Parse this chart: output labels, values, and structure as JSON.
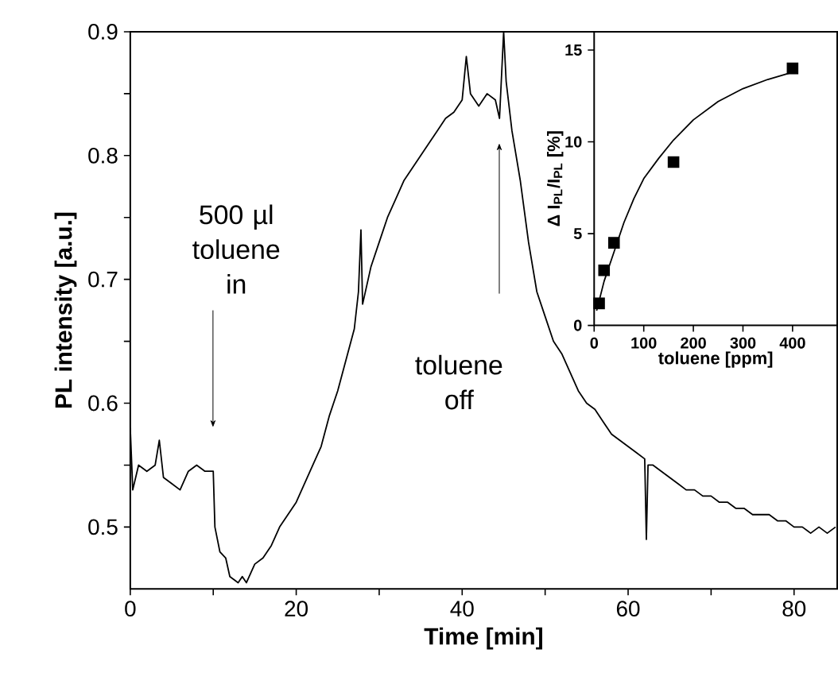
{
  "chart_data": [
    {
      "type": "line",
      "xlabel": "Time [min]",
      "ylabel": "PL intensity [a.u.]",
      "color": "#000000",
      "xlim": [
        0,
        85.2
      ],
      "ylim": [
        0.45,
        0.9
      ],
      "xticks": [
        0,
        {
          "value": 10,
          "label": null
        },
        20,
        {
          "value": 30,
          "label": null
        },
        40,
        {
          "value": 50,
          "label": null
        },
        60,
        {
          "value": 70,
          "label": null
        },
        80
      ],
      "yticks": [
        0.5,
        {
          "value": 0.55,
          "label": null
        },
        0.6,
        {
          "value": 0.65,
          "label": null
        },
        0.7,
        {
          "value": 0.75,
          "label": null
        },
        0.8,
        {
          "value": 0.85,
          "label": null
        },
        0.9
      ],
      "x": [
        0,
        0.3,
        1,
        2,
        3,
        3.5,
        4,
        5,
        6,
        7,
        8,
        9,
        10,
        10.2,
        10.8,
        11.5,
        12,
        13,
        13.5,
        14,
        15,
        16,
        17,
        18,
        19,
        20,
        21,
        22,
        23,
        24,
        25,
        26,
        27,
        27.5,
        27.8,
        28,
        29,
        30,
        31,
        32,
        33,
        34,
        35,
        36,
        37,
        38,
        39,
        40,
        40.5,
        41,
        42,
        43,
        44,
        44.5,
        45,
        45.3,
        46,
        47,
        48,
        49,
        50,
        51,
        52,
        53,
        54,
        55,
        56,
        57,
        58,
        59,
        60,
        61,
        62,
        62.2,
        62.4,
        63,
        64,
        65,
        66,
        67,
        68,
        69,
        70,
        71,
        72,
        73,
        74,
        75,
        76,
        77,
        78,
        79,
        80,
        81,
        82,
        83,
        84,
        85
      ],
      "values": [
        0.58,
        0.53,
        0.55,
        0.545,
        0.55,
        0.57,
        0.54,
        0.535,
        0.53,
        0.545,
        0.55,
        0.545,
        0.545,
        0.5,
        0.48,
        0.475,
        0.46,
        0.455,
        0.46,
        0.455,
        0.47,
        0.475,
        0.485,
        0.5,
        0.51,
        0.52,
        0.535,
        0.55,
        0.565,
        0.59,
        0.61,
        0.635,
        0.66,
        0.69,
        0.74,
        0.68,
        0.71,
        0.73,
        0.75,
        0.765,
        0.78,
        0.79,
        0.8,
        0.81,
        0.82,
        0.83,
        0.835,
        0.845,
        0.88,
        0.85,
        0.84,
        0.85,
        0.845,
        0.83,
        0.9,
        0.86,
        0.82,
        0.78,
        0.73,
        0.69,
        0.67,
        0.65,
        0.64,
        0.625,
        0.61,
        0.6,
        0.595,
        0.585,
        0.575,
        0.57,
        0.565,
        0.56,
        0.555,
        0.49,
        0.55,
        0.55,
        0.545,
        0.54,
        0.535,
        0.53,
        0.53,
        0.525,
        0.525,
        0.52,
        0.52,
        0.515,
        0.515,
        0.51,
        0.51,
        0.51,
        0.505,
        0.505,
        0.5,
        0.5,
        0.495,
        0.5,
        0.495,
        0.5
      ],
      "annotations": [
        "500 µl toluene in",
        "toluene off"
      ]
    },
    {
      "type": "scatter",
      "xlabel": "toluene [ppm]",
      "ylabel": "Δ I$_{PL}$/I$_{PL}$ [%]",
      "xlim": [
        0,
        490
      ],
      "ylim": [
        0,
        16
      ],
      "xticks": [
        0,
        100,
        200,
        300,
        400
      ],
      "yticks": [
        0,
        5,
        10,
        15
      ],
      "series": [
        {
          "color": "#000000",
          "marker": "square",
          "x": [
            10,
            20,
            40,
            160,
            400
          ],
          "values": [
            1.2,
            3,
            4.5,
            8.9,
            14
          ]
        },
        {
          "type": "line",
          "marker": "none",
          "color": "#000000",
          "x": [
            5,
            20,
            40,
            60,
            80,
            100,
            130,
            160,
            200,
            250,
            300,
            350,
            400
          ],
          "values": [
            0.8,
            2.4,
            4.0,
            5.6,
            6.9,
            8.0,
            9.1,
            10.1,
            11.2,
            12.2,
            12.9,
            13.4,
            13.8
          ]
        }
      ]
    }
  ]
}
